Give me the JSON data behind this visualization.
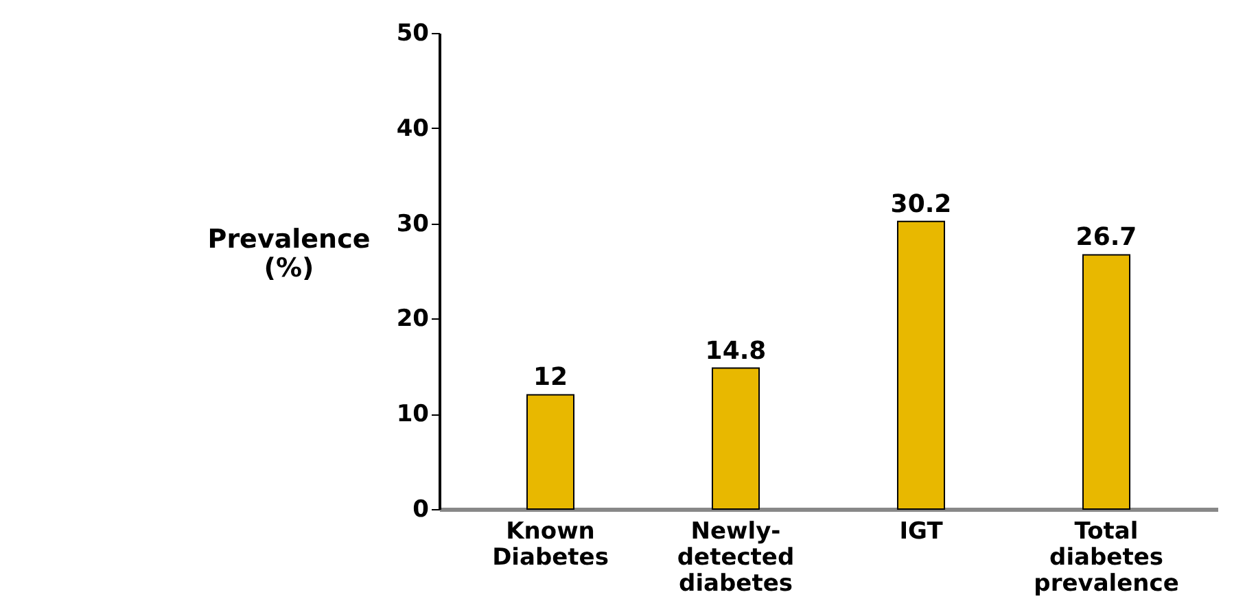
{
  "chart_data": {
    "type": "bar",
    "ylabel": "Prevalence (%)",
    "categories": [
      "Known Diabetes",
      "Newly-detected diabetes",
      "IGT",
      "Total diabetes prevalence"
    ],
    "values": [
      12,
      14.8,
      30.2,
      26.7
    ],
    "color": "#e8b800",
    "ylim": [
      0,
      50
    ],
    "yticks": [
      0,
      10,
      20,
      30,
      40,
      50
    ],
    "grid": false,
    "data_labels": true
  }
}
